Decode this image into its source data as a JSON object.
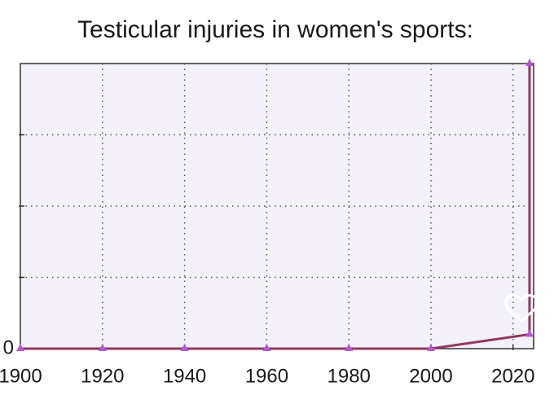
{
  "chart_data": {
    "type": "line",
    "title": "Testicular injuries in women's sports:",
    "x": [
      1900,
      1920,
      1940,
      1960,
      1980,
      2000,
      2024,
      2024
    ],
    "series": [
      {
        "color": "#8e3a5e",
        "marker_color": "#b55ad6",
        "values": [
          0,
          0,
          0,
          0,
          0,
          0,
          0.2,
          4
        ]
      }
    ],
    "xlim": [
      1900,
      2025
    ],
    "xticks": [
      1900,
      1920,
      1940,
      1960,
      1980,
      2000,
      2020
    ],
    "ylim": [
      0,
      4
    ],
    "yticks": [
      0
    ],
    "ygrid": [
      1,
      2,
      3
    ],
    "grid": true
  }
}
